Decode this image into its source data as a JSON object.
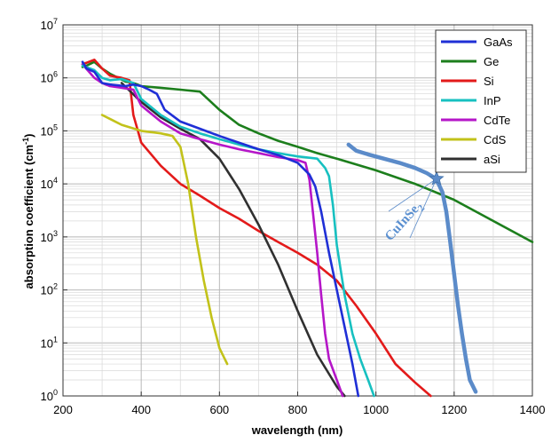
{
  "chart_data": {
    "type": "line",
    "xlabel": "wavelength (nm)",
    "ylabel_main": "absorption coefficient (cm",
    "ylabel_sup": "-1",
    "ylabel_tail": ")",
    "xlim": [
      200,
      1400
    ],
    "ylim": [
      1,
      10000000
    ],
    "yscale": "log",
    "grid": true,
    "legend_position": "top-right",
    "x_ticks": [
      {
        "value": 200,
        "label": "200"
      },
      {
        "value": 400,
        "label": "400"
      },
      {
        "value": 600,
        "label": "600"
      },
      {
        "value": 800,
        "label": "800"
      },
      {
        "value": 1000,
        "label": "1000"
      },
      {
        "value": 1200,
        "label": "1200"
      },
      {
        "value": 1400,
        "label": "1400"
      }
    ],
    "y_ticks": [
      {
        "value": 1,
        "base": "10",
        "exp": "0"
      },
      {
        "value": 10,
        "base": "10",
        "exp": "1"
      },
      {
        "value": 100,
        "base": "10",
        "exp": "2"
      },
      {
        "value": 1000,
        "base": "10",
        "exp": "3"
      },
      {
        "value": 10000,
        "base": "10",
        "exp": "4"
      },
      {
        "value": 100000,
        "base": "10",
        "exp": "5"
      },
      {
        "value": 1000000,
        "base": "10",
        "exp": "6"
      },
      {
        "value": 10000000,
        "base": "10",
        "exp": "7"
      }
    ],
    "series": [
      {
        "name": "GaAs",
        "color": "#1f2fd6",
        "x": [
          250,
          260,
          280,
          300,
          320,
          360,
          380,
          400,
          420,
          440,
          460,
          500,
          550,
          600,
          650,
          700,
          750,
          800,
          830,
          845,
          860,
          880,
          900,
          920,
          940,
          955
        ],
        "y": [
          2000000,
          1500000,
          1300000,
          800000,
          750000,
          700000,
          750000,
          700000,
          600000,
          500000,
          250000,
          150000,
          110000,
          80000,
          60000,
          45000,
          35000,
          25000,
          15000,
          9000,
          3000,
          500,
          100,
          20,
          4,
          1
        ]
      },
      {
        "name": "Ge",
        "color": "#1c7e1c",
        "x": [
          250,
          260,
          280,
          300,
          320,
          360,
          380,
          400,
          450,
          500,
          550,
          600,
          650,
          700,
          750,
          800,
          850,
          900,
          1000,
          1100,
          1200,
          1300,
          1400
        ],
        "y": [
          1600000,
          1700000,
          2000000,
          1500000,
          1200000,
          850000,
          800000,
          700000,
          650000,
          600000,
          550000,
          250000,
          130000,
          90000,
          65000,
          50000,
          38000,
          30000,
          18000,
          10000,
          5000,
          2000,
          800
        ]
      },
      {
        "name": "Si",
        "color": "#e31a1a",
        "x": [
          250,
          280,
          300,
          320,
          350,
          370,
          380,
          400,
          450,
          500,
          550,
          600,
          650,
          700,
          750,
          800,
          850,
          900,
          950,
          1000,
          1050,
          1100,
          1140
        ],
        "y": [
          1800000,
          2200000,
          1500000,
          1100000,
          1000000,
          900000,
          200000,
          60000,
          22000,
          10000,
          6000,
          3500,
          2200,
          1300,
          800,
          500,
          300,
          150,
          50,
          15,
          4,
          1.8,
          1
        ]
      },
      {
        "name": "InP",
        "color": "#17c0c0",
        "x": [
          250,
          280,
          300,
          320,
          350,
          380,
          400,
          450,
          500,
          550,
          600,
          650,
          700,
          750,
          800,
          850,
          870,
          880,
          890,
          900,
          920,
          940,
          960,
          980,
          995
        ],
        "y": [
          1700000,
          1400000,
          1000000,
          900000,
          950000,
          800000,
          400000,
          200000,
          120000,
          90000,
          70000,
          55000,
          45000,
          38000,
          33000,
          30000,
          20000,
          14000,
          4000,
          700,
          80,
          15,
          5,
          2,
          1
        ]
      },
      {
        "name": "CdTe",
        "color": "#b516c8",
        "x": [
          250,
          280,
          300,
          320,
          350,
          380,
          400,
          450,
          500,
          550,
          600,
          650,
          700,
          750,
          800,
          820,
          830,
          840,
          850,
          860,
          870,
          880,
          900,
          915
        ],
        "y": [
          1800000,
          1000000,
          800000,
          700000,
          650000,
          600000,
          300000,
          150000,
          90000,
          70000,
          55000,
          45000,
          38000,
          32000,
          28000,
          25000,
          12000,
          2500,
          500,
          80,
          15,
          5,
          2,
          1
        ]
      },
      {
        "name": "CdS",
        "color": "#c2c21a",
        "x": [
          300,
          350,
          400,
          450,
          480,
          500,
          520,
          540,
          560,
          580,
          600,
          620
        ],
        "y": [
          200000,
          130000,
          100000,
          90000,
          80000,
          50000,
          10000,
          1000,
          150,
          30,
          8,
          4
        ]
      },
      {
        "name": "aSi",
        "color": "#303030",
        "x": [
          350,
          400,
          450,
          500,
          550,
          600,
          650,
          700,
          750,
          800,
          850,
          900,
          920
        ],
        "y": [
          800000,
          350000,
          180000,
          110000,
          70000,
          30000,
          8000,
          1700,
          300,
          40,
          6,
          1.5,
          1
        ]
      }
    ],
    "annotation": {
      "label": "CuInSe",
      "sub": "2",
      "color": "#5b8bc9",
      "x": [
        930,
        950,
        980,
        1020,
        1060,
        1100,
        1130,
        1150,
        1160,
        1170,
        1180,
        1190,
        1200,
        1210,
        1220,
        1230,
        1240,
        1255
      ],
      "y": [
        55000,
        42000,
        36000,
        30000,
        25000,
        20000,
        16000,
        13000,
        10000,
        7000,
        3000,
        800,
        200,
        50,
        15,
        5,
        2,
        1.2
      ],
      "marker_x": 1155,
      "marker_y": 12500
    }
  }
}
